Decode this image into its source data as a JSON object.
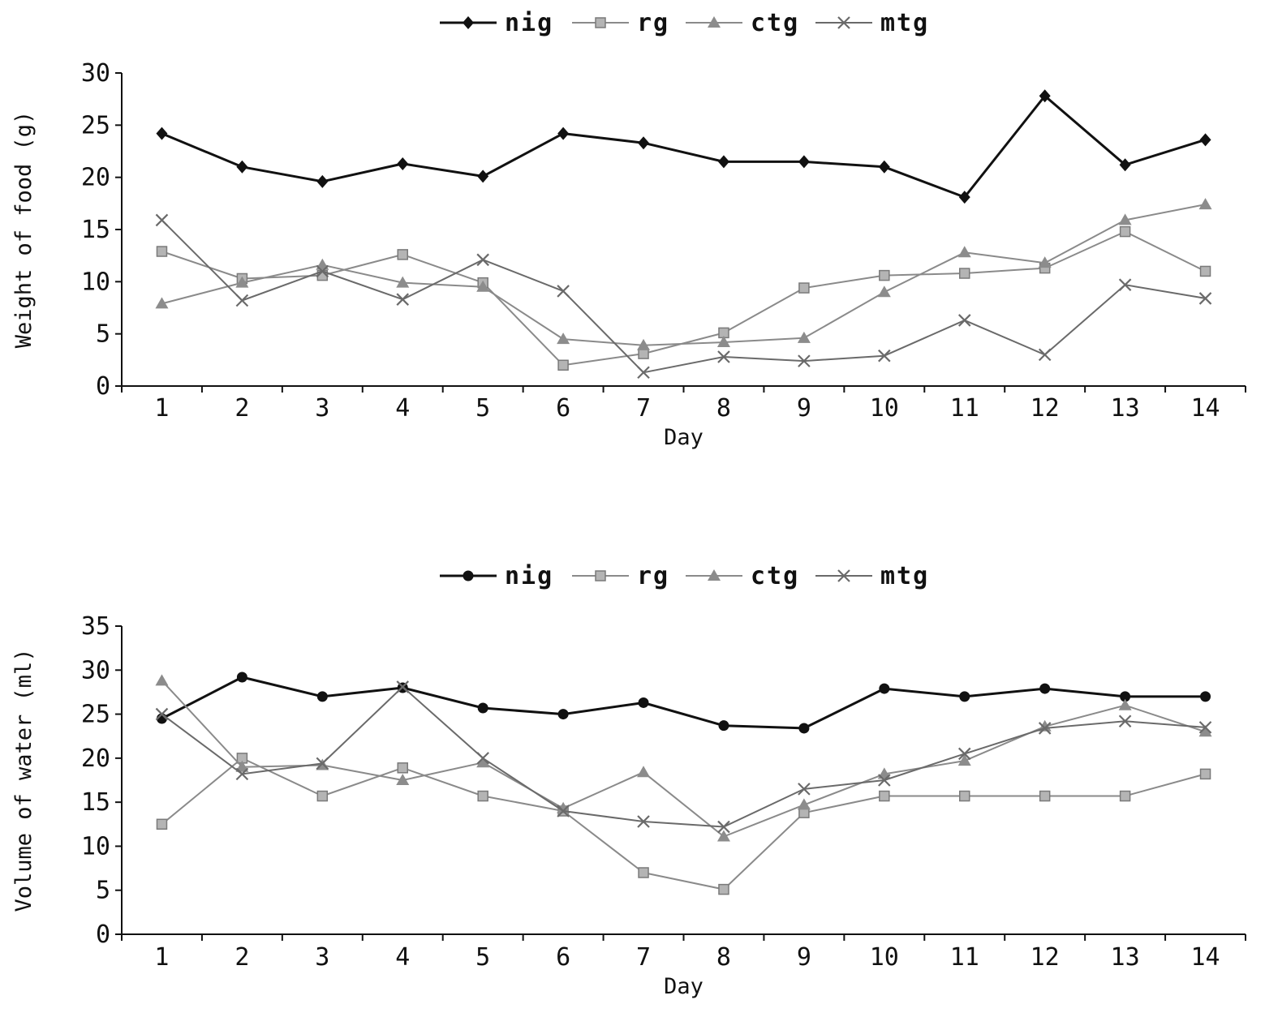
{
  "chart_data": [
    {
      "type": "line",
      "xlabel": "Day",
      "ylabel": "Weight of food (g)",
      "ylim": [
        0,
        30
      ],
      "yticks": [
        0,
        5,
        10,
        15,
        20,
        25,
        30
      ],
      "x": [
        1,
        2,
        3,
        4,
        5,
        6,
        7,
        8,
        9,
        10,
        11,
        12,
        13,
        14
      ],
      "grid": false,
      "legend_position": "top-center",
      "series": [
        {
          "name": "nig",
          "marker": "diamond",
          "color": "#111111",
          "values": [
            24.2,
            21.0,
            19.6,
            21.3,
            20.1,
            24.2,
            23.3,
            21.5,
            21.5,
            21.0,
            18.1,
            27.8,
            21.2,
            23.6
          ]
        },
        {
          "name": "rg",
          "marker": "square",
          "color": "#8a8a8a",
          "values": [
            12.9,
            10.3,
            10.6,
            12.6,
            9.9,
            2.0,
            3.1,
            5.1,
            9.4,
            10.6,
            10.8,
            11.3,
            14.8,
            11.0
          ]
        },
        {
          "name": "ctg",
          "marker": "triangle",
          "color": "#8a8a8a",
          "values": [
            7.9,
            9.9,
            11.6,
            9.9,
            9.5,
            4.5,
            3.9,
            4.2,
            4.6,
            9.0,
            12.8,
            11.8,
            15.9,
            17.4
          ]
        },
        {
          "name": "mtg",
          "marker": "x",
          "color": "#6a6a6a",
          "values": [
            15.9,
            8.2,
            11.0,
            8.3,
            12.1,
            9.1,
            1.3,
            2.8,
            2.4,
            2.9,
            6.3,
            3.0,
            9.7,
            8.4
          ]
        }
      ]
    },
    {
      "type": "line",
      "xlabel": "Day",
      "ylabel": "Volume of water (ml)",
      "ylim": [
        0,
        35
      ],
      "yticks": [
        0,
        5,
        10,
        15,
        20,
        25,
        30,
        35
      ],
      "x": [
        1,
        2,
        3,
        4,
        5,
        6,
        7,
        8,
        9,
        10,
        11,
        12,
        13,
        14
      ],
      "grid": false,
      "legend_position": "top-center",
      "series": [
        {
          "name": "nig",
          "marker": "circle",
          "color": "#111111",
          "values": [
            24.5,
            29.2,
            27.0,
            28.0,
            25.7,
            25.0,
            26.3,
            23.7,
            23.4,
            27.9,
            27.0,
            27.9,
            27.0,
            27.0
          ]
        },
        {
          "name": "rg",
          "marker": "square",
          "color": "#8a8a8a",
          "values": [
            12.5,
            20.0,
            15.7,
            18.9,
            15.7,
            14.0,
            7.0,
            5.1,
            13.8,
            15.7,
            15.7,
            15.7,
            15.7,
            18.2
          ]
        },
        {
          "name": "ctg",
          "marker": "triangle",
          "color": "#8a8a8a",
          "values": [
            28.8,
            19.0,
            19.2,
            17.5,
            19.5,
            14.3,
            18.4,
            11.1,
            14.7,
            18.2,
            19.7,
            23.6,
            26.0,
            23.0
          ]
        },
        {
          "name": "mtg",
          "marker": "x",
          "color": "#6a6a6a",
          "values": [
            25.0,
            18.2,
            19.4,
            28.1,
            20.0,
            14.0,
            12.8,
            12.2,
            16.5,
            17.5,
            20.5,
            23.4,
            24.2,
            23.5
          ]
        }
      ]
    }
  ]
}
